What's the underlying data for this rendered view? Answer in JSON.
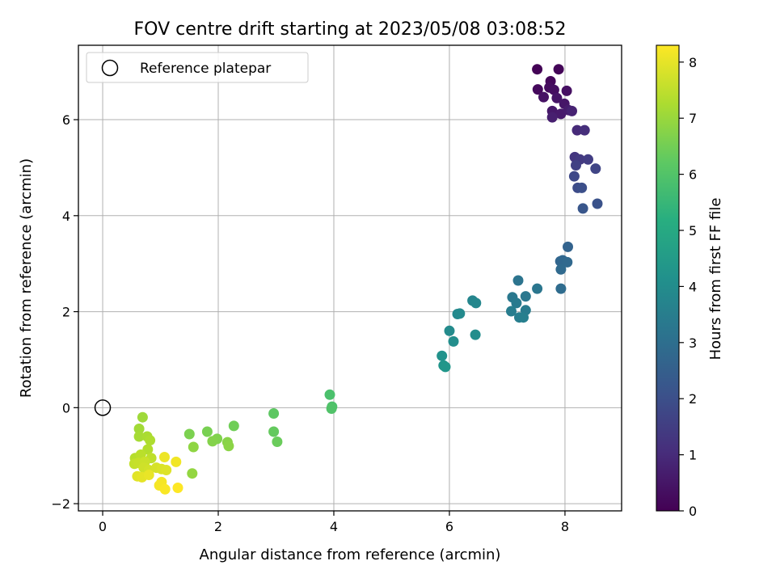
{
  "chart_data": {
    "type": "scatter",
    "title": "FOV centre drift starting at 2023/05/08 03:08:52",
    "xlabel": "Angular distance from reference (arcmin)",
    "ylabel": "Rotation from reference (arcmin)",
    "xlim": [
      -0.42,
      8.98
    ],
    "ylim": [
      -2.15,
      7.55
    ],
    "xticks": [
      0,
      2,
      4,
      6,
      8
    ],
    "yticks": [
      -2,
      0,
      2,
      4,
      6
    ],
    "grid": true,
    "legend": {
      "location": "upper-left",
      "entries": [
        "Reference platepar"
      ]
    },
    "reference_point": {
      "x": 0,
      "y": 0
    },
    "colorbar": {
      "label": "Hours from first FF file",
      "range": [
        0,
        8.3
      ],
      "ticks": [
        0,
        1,
        2,
        3,
        4,
        5,
        6,
        7,
        8
      ],
      "colormap": "viridis"
    },
    "points": [
      {
        "x": 7.52,
        "y": 7.05,
        "c": 0.05
      },
      {
        "x": 7.89,
        "y": 7.05,
        "c": 0.1
      },
      {
        "x": 7.75,
        "y": 6.8,
        "c": 0.15
      },
      {
        "x": 7.53,
        "y": 6.63,
        "c": 0.2
      },
      {
        "x": 7.73,
        "y": 6.67,
        "c": 0.25
      },
      {
        "x": 7.81,
        "y": 6.62,
        "c": 0.3
      },
      {
        "x": 8.03,
        "y": 6.6,
        "c": 0.35
      },
      {
        "x": 7.63,
        "y": 6.47,
        "c": 0.4
      },
      {
        "x": 7.86,
        "y": 6.45,
        "c": 0.45
      },
      {
        "x": 7.99,
        "y": 6.33,
        "c": 0.5
      },
      {
        "x": 7.78,
        "y": 6.18,
        "c": 0.55
      },
      {
        "x": 7.93,
        "y": 6.12,
        "c": 0.6
      },
      {
        "x": 8.06,
        "y": 6.2,
        "c": 0.65
      },
      {
        "x": 7.78,
        "y": 6.05,
        "c": 0.7
      },
      {
        "x": 8.12,
        "y": 6.18,
        "c": 0.8
      },
      {
        "x": 8.21,
        "y": 5.78,
        "c": 1.0
      },
      {
        "x": 8.34,
        "y": 5.78,
        "c": 1.1
      },
      {
        "x": 8.17,
        "y": 5.22,
        "c": 1.3
      },
      {
        "x": 8.26,
        "y": 5.17,
        "c": 1.4
      },
      {
        "x": 8.4,
        "y": 5.17,
        "c": 1.5
      },
      {
        "x": 8.19,
        "y": 5.05,
        "c": 1.6
      },
      {
        "x": 8.53,
        "y": 4.98,
        "c": 1.7
      },
      {
        "x": 8.16,
        "y": 4.82,
        "c": 1.8
      },
      {
        "x": 8.22,
        "y": 4.58,
        "c": 1.9
      },
      {
        "x": 8.29,
        "y": 4.58,
        "c": 2.0
      },
      {
        "x": 8.56,
        "y": 4.25,
        "c": 2.1
      },
      {
        "x": 8.31,
        "y": 4.15,
        "c": 2.2
      },
      {
        "x": 8.05,
        "y": 3.35,
        "c": 2.6
      },
      {
        "x": 7.92,
        "y": 3.05,
        "c": 2.7
      },
      {
        "x": 7.96,
        "y": 3.07,
        "c": 2.75
      },
      {
        "x": 8.04,
        "y": 3.03,
        "c": 2.8
      },
      {
        "x": 7.93,
        "y": 2.88,
        "c": 2.85
      },
      {
        "x": 7.93,
        "y": 2.48,
        "c": 2.9
      },
      {
        "x": 7.19,
        "y": 2.65,
        "c": 3.2
      },
      {
        "x": 7.52,
        "y": 2.48,
        "c": 3.25
      },
      {
        "x": 7.32,
        "y": 2.32,
        "c": 3.3
      },
      {
        "x": 7.09,
        "y": 2.3,
        "c": 3.35
      },
      {
        "x": 7.16,
        "y": 2.18,
        "c": 3.4
      },
      {
        "x": 7.32,
        "y": 2.03,
        "c": 3.45
      },
      {
        "x": 7.07,
        "y": 2.01,
        "c": 3.5
      },
      {
        "x": 7.21,
        "y": 1.88,
        "c": 3.55
      },
      {
        "x": 7.28,
        "y": 1.88,
        "c": 3.6
      },
      {
        "x": 6.4,
        "y": 2.23,
        "c": 3.8
      },
      {
        "x": 6.46,
        "y": 2.18,
        "c": 3.85
      },
      {
        "x": 6.14,
        "y": 1.95,
        "c": 3.9
      },
      {
        "x": 6.18,
        "y": 1.96,
        "c": 3.95
      },
      {
        "x": 6.0,
        "y": 1.6,
        "c": 4.0
      },
      {
        "x": 6.45,
        "y": 1.52,
        "c": 4.05
      },
      {
        "x": 6.07,
        "y": 1.38,
        "c": 4.1
      },
      {
        "x": 5.87,
        "y": 1.08,
        "c": 4.2
      },
      {
        "x": 5.9,
        "y": 0.88,
        "c": 4.3
      },
      {
        "x": 5.93,
        "y": 0.85,
        "c": 4.35
      },
      {
        "x": 3.93,
        "y": 0.27,
        "c": 5.9
      },
      {
        "x": 3.97,
        "y": 0.02,
        "c": 5.95
      },
      {
        "x": 3.96,
        "y": -0.02,
        "c": 6.0
      },
      {
        "x": 2.96,
        "y": -0.12,
        "c": 6.2
      },
      {
        "x": 2.96,
        "y": -0.5,
        "c": 6.3
      },
      {
        "x": 3.02,
        "y": -0.71,
        "c": 6.4
      },
      {
        "x": 2.27,
        "y": -0.38,
        "c": 6.5
      },
      {
        "x": 1.81,
        "y": -0.5,
        "c": 6.6
      },
      {
        "x": 1.5,
        "y": -0.55,
        "c": 6.65
      },
      {
        "x": 1.98,
        "y": -0.65,
        "c": 6.7
      },
      {
        "x": 1.9,
        "y": -0.7,
        "c": 6.75
      },
      {
        "x": 2.16,
        "y": -0.72,
        "c": 6.8
      },
      {
        "x": 2.18,
        "y": -0.8,
        "c": 6.85
      },
      {
        "x": 1.57,
        "y": -0.82,
        "c": 6.9
      },
      {
        "x": 1.55,
        "y": -1.37,
        "c": 6.95
      },
      {
        "x": 0.69,
        "y": -0.2,
        "c": 7.1
      },
      {
        "x": 0.63,
        "y": -0.44,
        "c": 7.15
      },
      {
        "x": 0.63,
        "y": -0.6,
        "c": 7.2
      },
      {
        "x": 0.77,
        "y": -0.6,
        "c": 7.25
      },
      {
        "x": 0.82,
        "y": -0.68,
        "c": 7.3
      },
      {
        "x": 0.78,
        "y": -0.87,
        "c": 7.35
      },
      {
        "x": 0.56,
        "y": -1.05,
        "c": 7.4
      },
      {
        "x": 0.66,
        "y": -0.98,
        "c": 7.45
      },
      {
        "x": 0.84,
        "y": -1.05,
        "c": 7.5
      },
      {
        "x": 0.55,
        "y": -1.17,
        "c": 7.55
      },
      {
        "x": 0.62,
        "y": -1.15,
        "c": 7.6
      },
      {
        "x": 0.73,
        "y": -1.13,
        "c": 7.65
      },
      {
        "x": 0.71,
        "y": -1.25,
        "c": 7.7
      },
      {
        "x": 0.8,
        "y": -1.3,
        "c": 7.75
      },
      {
        "x": 0.93,
        "y": -1.25,
        "c": 7.8
      },
      {
        "x": 1.02,
        "y": -1.28,
        "c": 7.85
      },
      {
        "x": 1.1,
        "y": -1.3,
        "c": 7.9
      },
      {
        "x": 0.6,
        "y": -1.43,
        "c": 7.95
      },
      {
        "x": 0.68,
        "y": -1.45,
        "c": 8.0
      },
      {
        "x": 0.8,
        "y": -1.4,
        "c": 8.05
      },
      {
        "x": 1.07,
        "y": -1.03,
        "c": 8.1
      },
      {
        "x": 1.27,
        "y": -1.13,
        "c": 8.15
      },
      {
        "x": 1.02,
        "y": -1.55,
        "c": 8.2
      },
      {
        "x": 0.98,
        "y": -1.62,
        "c": 8.2
      },
      {
        "x": 1.08,
        "y": -1.7,
        "c": 8.25
      },
      {
        "x": 1.3,
        "y": -1.67,
        "c": 8.3
      }
    ]
  }
}
